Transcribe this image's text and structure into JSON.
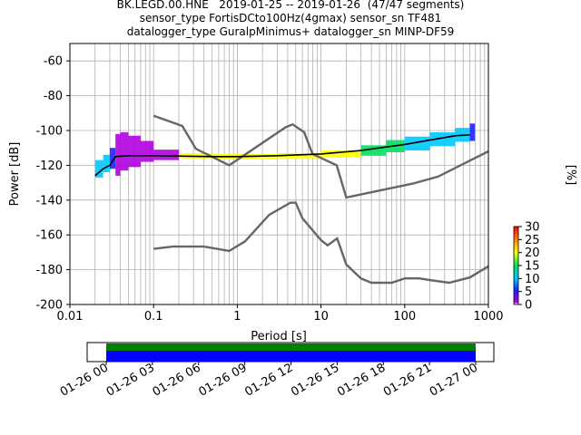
{
  "title_lines": [
    "BK.LEGD.00.HNE   2019-01-25 -- 2019-01-26  (47/47 segments)",
    "sensor_type FortisDCto100Hz(4gmax) sensor_sn TF481",
    "datalogger_type GuralpMinimus+ datalogger_sn MINP-DF59"
  ],
  "chart_data": [
    {
      "type": "heatmap",
      "xlabel": "Period [s]",
      "ylabel": "Power [dB]",
      "xscale": "log",
      "xlim": [
        0.01,
        1000
      ],
      "ylim": [
        -200,
        -50
      ],
      "xticks": [
        0.01,
        0.1,
        1,
        10,
        100,
        1000
      ],
      "xtick_labels": [
        "0.01",
        "0.1",
        "1",
        "10",
        "100",
        "1000"
      ],
      "yticks": [
        -200,
        -180,
        -160,
        -140,
        -120,
        -100,
        -80,
        -60
      ],
      "grid": true,
      "colorbar": {
        "label": "[%]",
        "min": 0,
        "max": 30,
        "ticks": [
          0,
          5,
          10,
          15,
          20,
          25,
          30
        ],
        "colors": [
          "#ffffff",
          "#b000e0",
          "#2020ff",
          "#00c8ff",
          "#00e060",
          "#ffff00",
          "#ff8800",
          "#ff0000"
        ]
      },
      "series": [
        {
          "type": "line",
          "x": [
            0.1,
            0.22,
            0.32,
            0.8,
            3.8,
            4.6,
            6.3,
            7.9,
            15.4,
            20,
            125,
            250,
            1000
          ],
          "y": [
            -91.5,
            -97.4,
            -110.5,
            -120,
            -98,
            -96.5,
            -101,
            -113.5,
            -120,
            -138.5,
            -130.5,
            -126.5,
            -112
          ]
        },
        {
          "type": "line",
          "x": [
            0.1,
            0.17,
            0.4,
            0.8,
            1.24,
            2.4,
            4.3,
            5.0,
            6.0,
            10,
            12,
            15.6,
            20,
            30,
            40,
            70,
            100,
            150,
            200,
            340,
            600,
            1000
          ],
          "y": [
            -168,
            -166.7,
            -166.7,
            -169.2,
            -163.7,
            -148.5,
            -141.5,
            -141.5,
            -150.4,
            -163,
            -166,
            -162,
            -177,
            -185,
            -187.5,
            -187.5,
            -185,
            -185,
            -186,
            -187.5,
            -184.5,
            -178
          ]
        },
        {
          "type": "line",
          "x": [
            0.02,
            0.025,
            0.03,
            0.035,
            0.05,
            0.1,
            0.5,
            1,
            3,
            10,
            30,
            60,
            100,
            200,
            400,
            600
          ],
          "y": [
            -126,
            -122,
            -120,
            -115,
            -114.5,
            -114.5,
            -115,
            -115,
            -114.5,
            -113.5,
            -111.5,
            -109.5,
            -108,
            -105.5,
            -103,
            -102.5
          ]
        }
      ],
      "density": [
        {
          "x": 0.02,
          "y": -122,
          "spread": 5,
          "pct": 14
        },
        {
          "x": 0.025,
          "y": -119,
          "spread": 5,
          "pct": 14
        },
        {
          "x": 0.03,
          "y": -116,
          "spread": 6,
          "pct": 8
        },
        {
          "x": 0.035,
          "y": -114,
          "spread": 12,
          "pct": 4
        },
        {
          "x": 0.04,
          "y": -112,
          "spread": 11,
          "pct": 3
        },
        {
          "x": 0.05,
          "y": -112,
          "spread": 9,
          "pct": 3
        },
        {
          "x": 0.07,
          "y": -112,
          "spread": 6,
          "pct": 3
        },
        {
          "x": 0.1,
          "y": -114,
          "spread": 3,
          "pct": 3
        },
        {
          "x": 0.2,
          "y": -114.5,
          "spread": 1.5,
          "pct": 22
        },
        {
          "x": 0.5,
          "y": -115,
          "spread": 1.5,
          "pct": 24
        },
        {
          "x": 1,
          "y": -115,
          "spread": 1.5,
          "pct": 24
        },
        {
          "x": 3,
          "y": -114.5,
          "spread": 1.5,
          "pct": 24
        },
        {
          "x": 10,
          "y": -113.5,
          "spread": 2,
          "pct": 20
        },
        {
          "x": 30,
          "y": -111.5,
          "spread": 3,
          "pct": 18
        },
        {
          "x": 60,
          "y": -109,
          "spread": 3.5,
          "pct": 16
        },
        {
          "x": 100,
          "y": -107.5,
          "spread": 4,
          "pct": 14
        },
        {
          "x": 200,
          "y": -105,
          "spread": 4,
          "pct": 12
        },
        {
          "x": 400,
          "y": -102.5,
          "spread": 4,
          "pct": 10
        },
        {
          "x": 600,
          "y": -101,
          "spread": 5,
          "pct": 8
        }
      ]
    },
    {
      "type": "bar",
      "categories": [
        "01-26 00",
        "01-26 03",
        "01-26 06",
        "01-26 09",
        "01-26 12",
        "01-26 15",
        "01-26 18",
        "01-26 21",
        "01-27 00"
      ],
      "bands": [
        {
          "color": "#008000",
          "start": "01-26 00",
          "end": "01-27 00"
        },
        {
          "color": "#0000ff",
          "start": "01-26 00",
          "end": "01-27 00"
        }
      ]
    }
  ]
}
